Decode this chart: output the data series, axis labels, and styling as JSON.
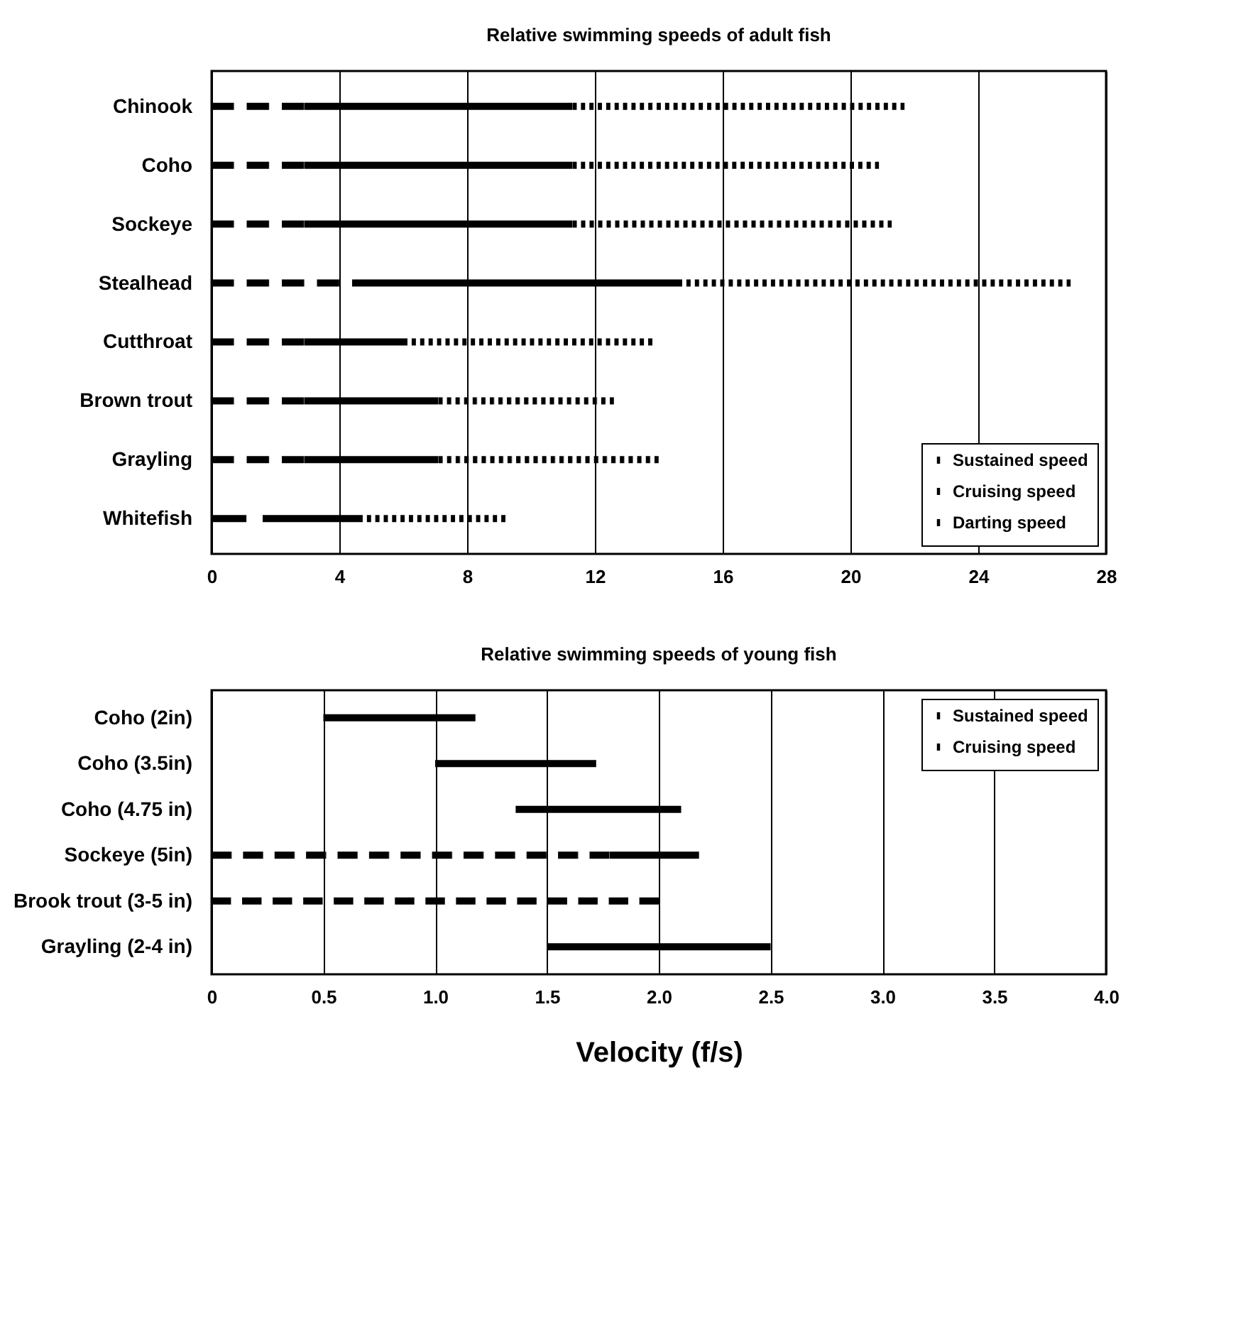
{
  "chart_data": [
    {
      "type": "bar",
      "title": "Relative swimming speeds of adult fish",
      "orientation": "horizontal",
      "categories": [
        "Chinook",
        "Coho",
        "Sockeye",
        "Stealhead",
        "Cutthroat",
        "Brown trout",
        "Grayling",
        "Whitefish"
      ],
      "series": [
        {
          "name": "Sustained speed",
          "color": "#000000",
          "line_style": "dashed",
          "base": [
            0,
            0,
            0,
            0,
            0,
            0,
            0,
            0
          ],
          "values": [
            2.9,
            2.9,
            2.9,
            4.0,
            2.9,
            2.9,
            2.9,
            1.1
          ]
        },
        {
          "name": "Cruising speed",
          "color": "#000000",
          "line_style": "solid",
          "base": [
            2.9,
            2.9,
            2.9,
            4.4,
            2.9,
            2.9,
            2.9,
            1.6
          ],
          "values": [
            8.4,
            8.4,
            8.4,
            10.2,
            3.1,
            4.2,
            4.2,
            3.0
          ]
        },
        {
          "name": "Darting speed",
          "color": "#000000",
          "line_style": "dotted",
          "base": [
            11.3,
            11.3,
            11.3,
            14.6,
            6.0,
            7.1,
            7.1,
            4.6
          ],
          "values": [
            10.4,
            9.6,
            10.0,
            12.3,
            7.8,
            5.5,
            6.9,
            4.6
          ]
        }
      ],
      "xlim": [
        0,
        28
      ],
      "xticks": [
        0,
        4,
        8,
        12,
        16,
        20,
        24,
        28
      ],
      "grid": "x",
      "legend": "bottom right"
    },
    {
      "type": "bar",
      "title": "Relative swimming speeds of young fish",
      "xlabel": "Velocity (f/s)",
      "orientation": "horizontal",
      "categories": [
        "Coho (2in)",
        "Coho (3.5in)",
        "Coho (4.75 in)",
        "Sockeye (5in)",
        "Brook trout (3-5 in)",
        "Grayling (2-4 in)"
      ],
      "series": [
        {
          "name": "Sustained speed",
          "color": "#000000",
          "line_style": "dashed",
          "base": [
            null,
            null,
            null,
            0,
            0,
            null
          ],
          "values": [
            null,
            null,
            null,
            1.78,
            2.0,
            null
          ]
        },
        {
          "name": "Cruising speed",
          "color": "#000000",
          "line_style": "solid",
          "base": [
            0.5,
            1.0,
            1.36,
            1.78,
            null,
            1.5
          ],
          "values": [
            0.68,
            0.72,
            0.74,
            0.4,
            null,
            1.0
          ]
        }
      ],
      "xlim": [
        0,
        4.0
      ],
      "xticks": [
        {
          "value": 0,
          "label": "0"
        },
        0.5,
        {
          "value": 1,
          "label": "1.0"
        },
        1.5,
        {
          "value": 2,
          "label": "2.0"
        },
        2.5,
        {
          "value": 3,
          "label": "3.0"
        },
        3.5,
        {
          "value": 4,
          "label": "4.0"
        }
      ],
      "grid": "x",
      "legend": "top right"
    }
  ]
}
